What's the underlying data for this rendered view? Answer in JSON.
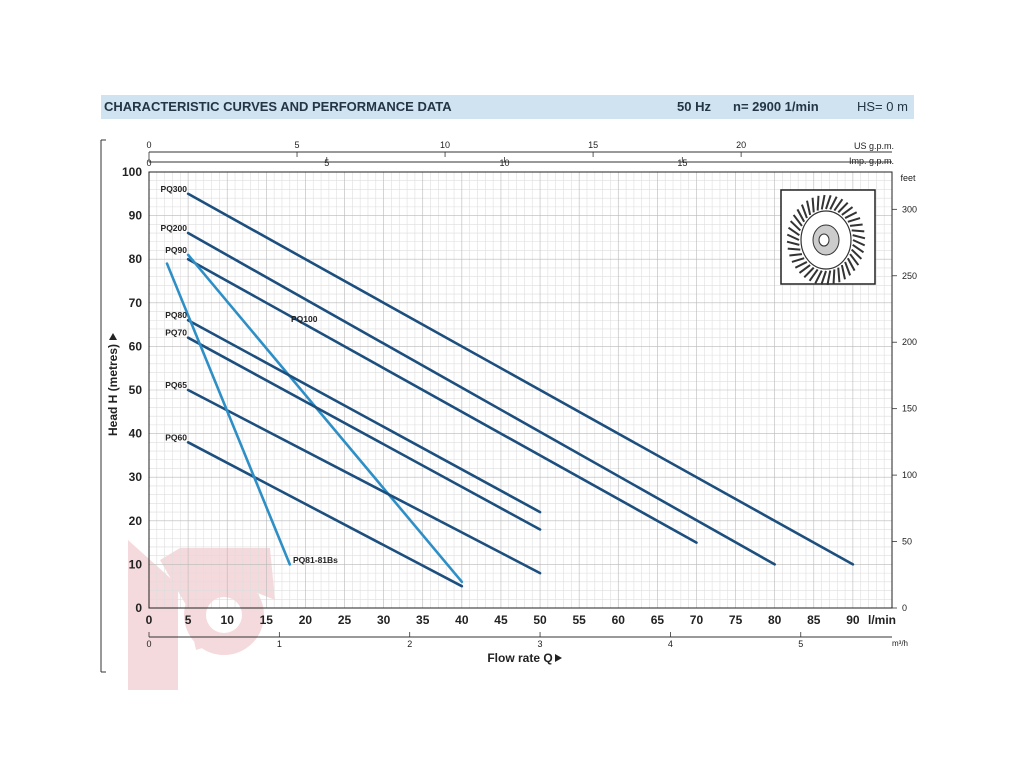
{
  "header": {
    "title": "CHARACTERISTIC CURVES AND PERFORMANCE DATA",
    "frequency": "50 Hz",
    "speed": "n= 2900  1/min",
    "hs": "HS= 0 m"
  },
  "chart_data": {
    "type": "line",
    "xlabel": "Flow rate  Q",
    "ylabel": "Head H (metres)",
    "x_unit": "l/min",
    "xlim": [
      0,
      95
    ],
    "ylim": [
      0,
      100
    ],
    "x_ticks": [
      0,
      5,
      10,
      15,
      20,
      25,
      30,
      35,
      40,
      45,
      50,
      55,
      60,
      65,
      70,
      75,
      80,
      85,
      90
    ],
    "y_ticks": [
      0,
      10,
      20,
      30,
      40,
      50,
      60,
      70,
      80,
      90,
      100
    ],
    "us_gpm_label": "US g.p.m.",
    "us_gpm_ticks": [
      0,
      5,
      10,
      15,
      20
    ],
    "imp_gpm_label": "Imp. g.p.m.",
    "imp_gpm_ticks": [
      0,
      5,
      10,
      15
    ],
    "feet_label": "feet",
    "feet_ticks": [
      0,
      50,
      100,
      150,
      200,
      250,
      300
    ],
    "m3h_label": "m³/h",
    "m3h_ticks": [
      0,
      1,
      2,
      3,
      4,
      5
    ],
    "grid": true,
    "series": [
      {
        "name": "PQ300",
        "color": "#1d4f7e",
        "x": [
          5,
          90
        ],
        "y": [
          95,
          10
        ]
      },
      {
        "name": "PQ200",
        "color": "#1d4f7e",
        "x": [
          5,
          80
        ],
        "y": [
          86,
          10
        ]
      },
      {
        "name": "PQ100",
        "color": "#1d4f7e",
        "x": [
          5,
          70
        ],
        "y": [
          80,
          15
        ]
      },
      {
        "name": "PQ90",
        "color": "#2e8fc6",
        "x": [
          5,
          40
        ],
        "y": [
          81,
          6
        ]
      },
      {
        "name": "PQ80",
        "color": "#1d4f7e",
        "x": [
          5,
          50
        ],
        "y": [
          66,
          22
        ]
      },
      {
        "name": "PQ70",
        "color": "#1d4f7e",
        "x": [
          5,
          50
        ],
        "y": [
          62,
          18
        ]
      },
      {
        "name": "PQ65",
        "color": "#1d4f7e",
        "x": [
          5,
          50
        ],
        "y": [
          50,
          8
        ]
      },
      {
        "name": "PQ60",
        "color": "#1d4f7e",
        "x": [
          5,
          40
        ],
        "y": [
          38,
          5
        ]
      },
      {
        "name": "PQ81-81Bs",
        "color": "#2e8fc6",
        "x": [
          2.3,
          18
        ],
        "y": [
          79,
          10
        ]
      }
    ]
  }
}
